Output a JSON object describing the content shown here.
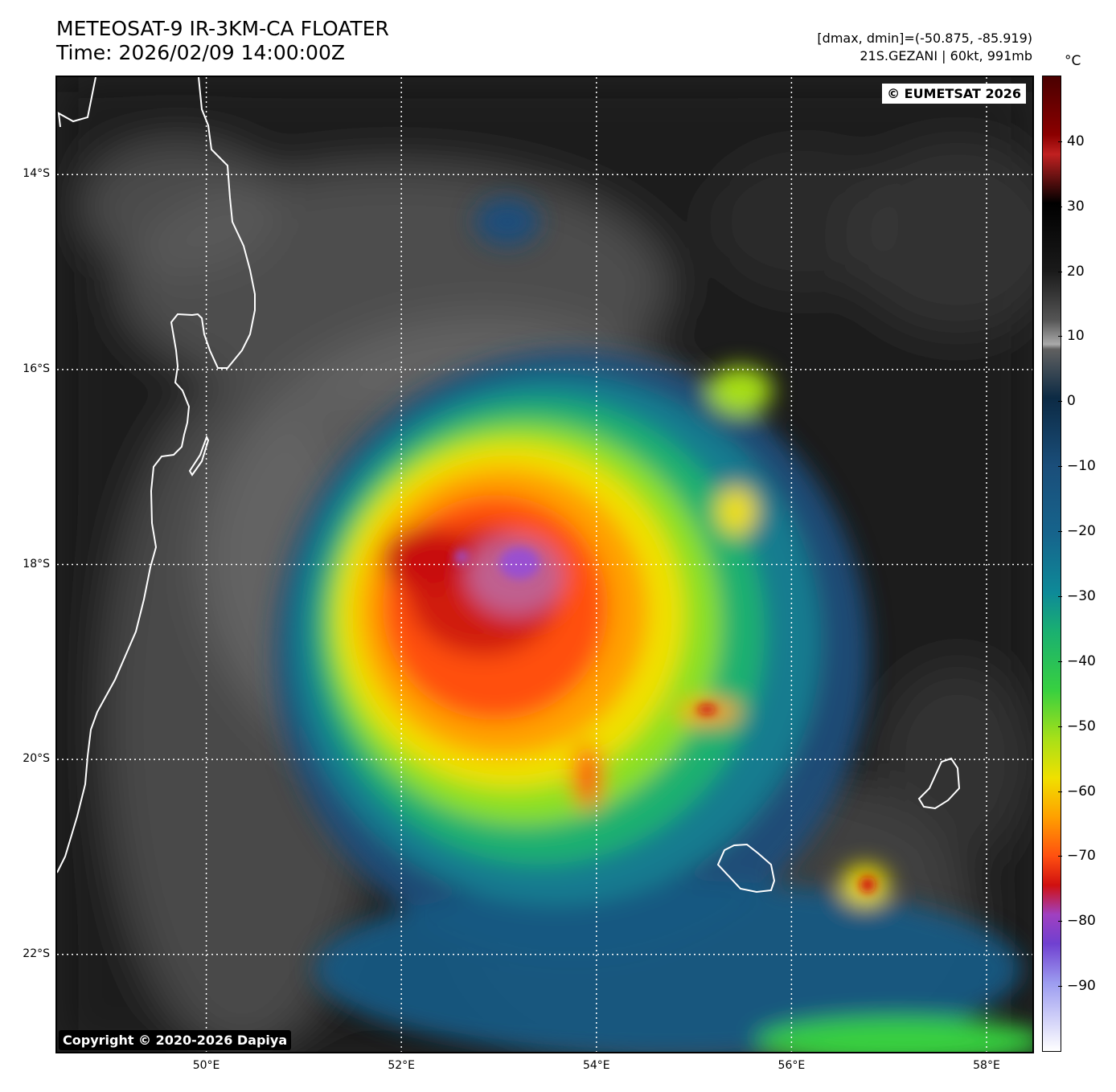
{
  "header": {
    "title_line1": "METEOSAT-9 IR-3KM-CA FLOATER",
    "title_line2": "Time: 2026/02/09 14:00:00Z",
    "stats_line": "[dmax, dmin]=(-50.875, -85.919)",
    "storm_line": "21S.GEZANI | 60kt, 991mb"
  },
  "map": {
    "badge_top_right": "© EUMETSAT 2026",
    "badge_bottom_left": "Copyright © 2020-2026 Dapiya",
    "lat_labels": [
      "14°S",
      "16°S",
      "18°S",
      "20°S",
      "22°S"
    ],
    "lon_labels": [
      "50°E",
      "52°E",
      "54°E",
      "56°E",
      "58°E"
    ],
    "lat_values": [
      -14,
      -16,
      -18,
      -20,
      -22
    ],
    "lon_values": [
      50,
      52,
      54,
      56,
      58
    ],
    "extent": {
      "lon_min": 48.47,
      "lon_max": 58.47,
      "lat_min": -23.0,
      "lat_max": -13.0
    },
    "features": [
      "madagascar-coastline",
      "reunion-island",
      "mauritius-island",
      "tropical-cyclone-gezani"
    ]
  },
  "colorbar": {
    "unit": "°C",
    "ticks": [
      "40",
      "30",
      "20",
      "10",
      "0",
      "−10",
      "−20",
      "−30",
      "−40",
      "−50",
      "−60",
      "−70",
      "−80",
      "−90"
    ],
    "tick_values": [
      40,
      30,
      20,
      10,
      0,
      -10,
      -20,
      -30,
      -40,
      -50,
      -60,
      -70,
      -80,
      -90
    ],
    "range": [
      -100,
      50
    ]
  }
}
